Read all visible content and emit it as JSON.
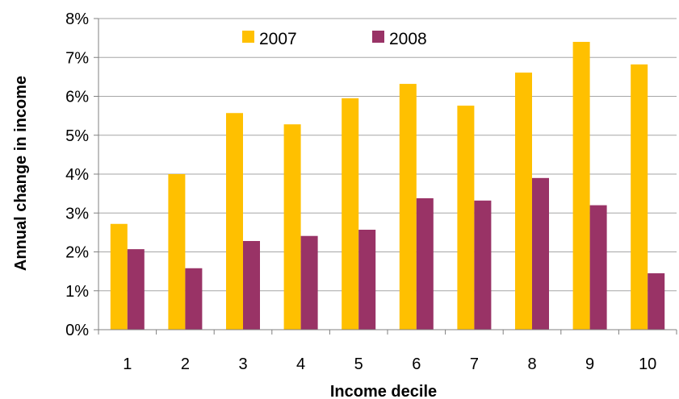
{
  "chart_data": {
    "type": "bar",
    "title": "",
    "xlabel": "Income decile",
    "ylabel": "Annual change in income",
    "categories": [
      "1",
      "2",
      "3",
      "4",
      "5",
      "6",
      "7",
      "8",
      "9",
      "10"
    ],
    "series": [
      {
        "name": "2007",
        "color": "#FFC000",
        "values": [
          2.72,
          4.0,
          5.57,
          5.28,
          5.95,
          6.32,
          5.76,
          6.61,
          7.4,
          6.82
        ]
      },
      {
        "name": "2008",
        "color": "#993366",
        "values": [
          2.07,
          1.58,
          2.28,
          2.41,
          2.57,
          3.38,
          3.32,
          3.9,
          3.2,
          1.45
        ]
      }
    ],
    "ylim": [
      0,
      8
    ],
    "yticks": [
      0,
      1,
      2,
      3,
      4,
      5,
      6,
      7,
      8
    ],
    "ytick_labels": [
      "0%",
      "1%",
      "2%",
      "3%",
      "4%",
      "5%",
      "6%",
      "7%",
      "8%"
    ],
    "grid": true,
    "legend_position": "top-center"
  }
}
